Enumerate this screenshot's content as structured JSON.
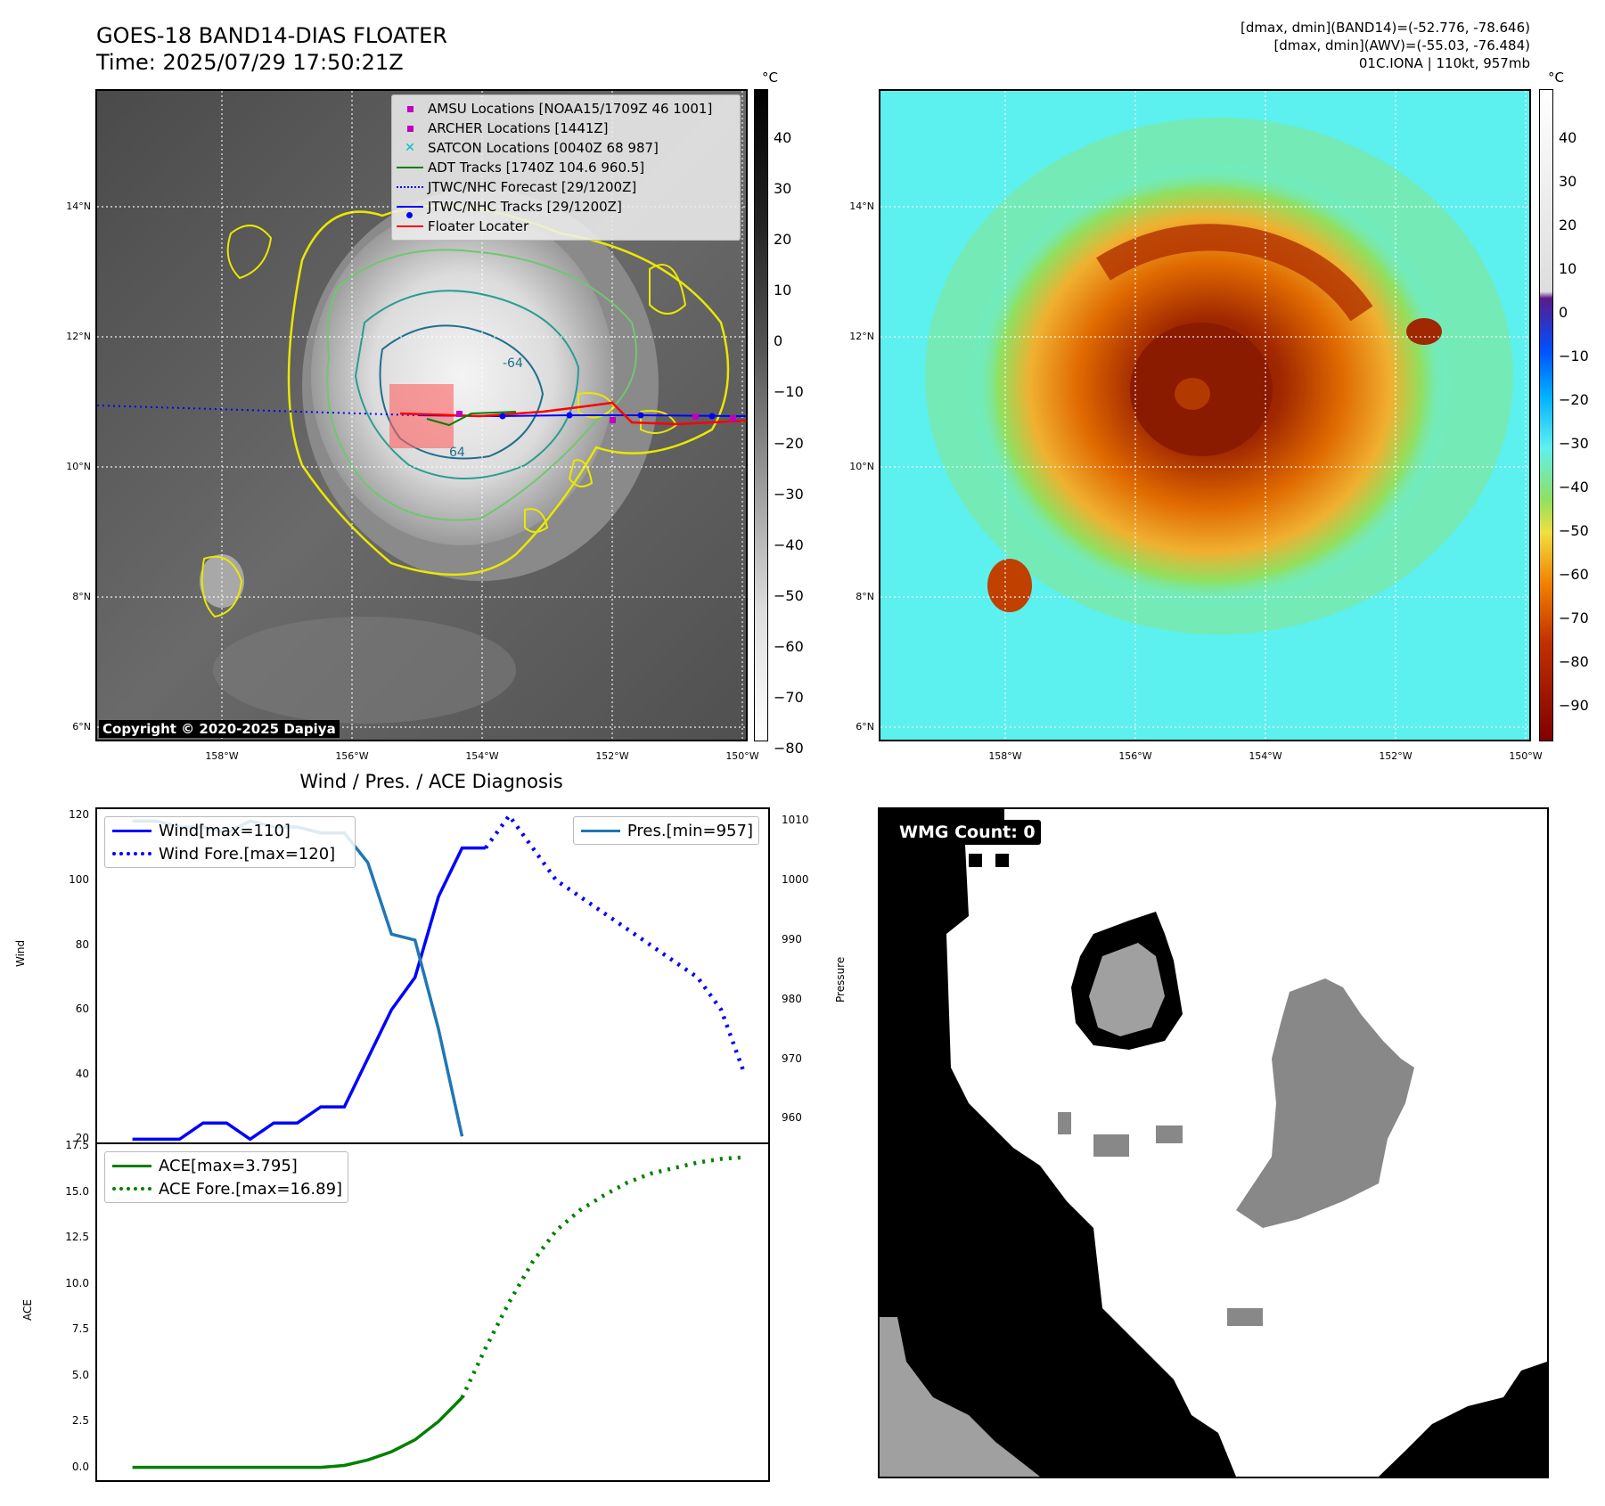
{
  "header": {
    "title_line1": "GOES-18 BAND14-DIAS FLOATER",
    "title_line2": "Time: 2025/07/29 17:50:21Z",
    "meta_line1": "[dmax, dmin](BAND14)=(-52.776, -78.646)",
    "meta_line2": "[dmax, dmin](AWV)=(-55.03, -76.484)",
    "meta_line3": "01C.IONA | 110kt, 957mb"
  },
  "map": {
    "lat_labels": [
      "14°N",
      "12°N",
      "10°N",
      "8°N",
      "6°N"
    ],
    "lon_labels": [
      "158°W",
      "156°W",
      "154°W",
      "152°W",
      "150°W"
    ],
    "copyright": "Copyright © 2020-2025 Dapiya",
    "contour_labels": [
      "-64",
      "64"
    ],
    "legend": [
      {
        "label": "AMSU Locations [NOAA15/1709Z 46 1001]",
        "color": "#c000c0",
        "symbol": "square"
      },
      {
        "label": "ARCHER Locations [1441Z]",
        "color": "#c000c0",
        "symbol": "square"
      },
      {
        "label": "SATCON Locations [0040Z 68 987]",
        "color": "#00c0c0",
        "symbol": "x"
      },
      {
        "label": "ADT Tracks [1740Z 104.6 960.5]",
        "color": "#008000",
        "symbol": "line"
      },
      {
        "label": "JTWC/NHC Forecast [29/1200Z]",
        "color": "#0000ff",
        "symbol": "dotted"
      },
      {
        "label": "JTWC/NHC Tracks [29/1200Z]",
        "color": "#0000ff",
        "symbol": "line-dot"
      },
      {
        "label": "Floater Locater",
        "color": "#ff0000",
        "symbol": "line"
      }
    ],
    "colorbar_gray": {
      "unit": "°C",
      "ticks": [
        "40",
        "30",
        "20",
        "10",
        "0",
        "−10",
        "−20",
        "−30",
        "−40",
        "−50",
        "−60",
        "−70",
        "−80"
      ]
    },
    "colorbar_color": {
      "unit": "°C",
      "ticks": [
        "40",
        "30",
        "20",
        "10",
        "0",
        "−10",
        "−20",
        "−30",
        "−40",
        "−50",
        "−60",
        "−70",
        "−80",
        "−90"
      ]
    }
  },
  "diagnosis": {
    "title": "Wind / Pres. / ACE Diagnosis",
    "wmg_count": "WMG Count: 0",
    "wind_ylabel": "Wind",
    "pres_ylabel": "Pressure",
    "ace_ylabel": "ACE"
  },
  "chart_data": [
    {
      "type": "line",
      "title": "Wind / Pres. / ACE Diagnosis",
      "ylabel": "Wind",
      "ylim": [
        19,
        122
      ],
      "y_ticks": [
        20,
        40,
        60,
        80,
        100,
        120
      ],
      "xlim": [
        0,
        27
      ],
      "series": [
        {
          "name": "Wind[max=110]",
          "color": "#0000ff",
          "style": "solid",
          "x": [
            1,
            2,
            3,
            4,
            5,
            6,
            7,
            8,
            9,
            10,
            11,
            12,
            13,
            14,
            15,
            16
          ],
          "values": [
            20,
            20,
            20,
            25,
            25,
            20,
            25,
            25,
            30,
            30,
            45,
            60,
            70,
            95,
            110,
            110
          ]
        },
        {
          "name": "Wind Fore.[max=120]",
          "color": "#0000ff",
          "style": "dotted",
          "x": [
            16,
            17,
            18,
            19,
            20,
            21,
            22,
            23,
            24,
            25,
            26,
            27
          ],
          "values": [
            110,
            120,
            110,
            100,
            95,
            90,
            85,
            80,
            75,
            70,
            60,
            40
          ]
        }
      ]
    },
    {
      "type": "line",
      "ylabel": "Pressure",
      "ylim": [
        956,
        1012
      ],
      "y_ticks": [
        960,
        970,
        980,
        990,
        1000,
        1010
      ],
      "series": [
        {
          "name": "Pres.[min=957]",
          "color": "#1f77b4",
          "style": "solid",
          "x": [
            1,
            2,
            3,
            4,
            5,
            6,
            7,
            8,
            9,
            10,
            11,
            12,
            13,
            14,
            15
          ],
          "values": [
            1010,
            1010,
            1009,
            1009,
            1008,
            1010,
            1009,
            1009,
            1008,
            1008,
            1003,
            991,
            990,
            975,
            957
          ]
        }
      ]
    },
    {
      "type": "line",
      "ylabel": "ACE",
      "ylim": [
        -0.7,
        17.6
      ],
      "y_ticks": [
        0.0,
        2.5,
        5.0,
        7.5,
        10.0,
        12.5,
        15.0,
        17.5
      ],
      "series": [
        {
          "name": "ACE[max=3.795]",
          "color": "#008000",
          "style": "solid",
          "x": [
            1,
            2,
            3,
            4,
            5,
            6,
            7,
            8,
            9,
            10,
            11,
            12,
            13,
            14,
            15
          ],
          "values": [
            0,
            0,
            0,
            0,
            0,
            0,
            0,
            0,
            0,
            0.1,
            0.4,
            0.85,
            1.5,
            2.5,
            3.795
          ]
        },
        {
          "name": "ACE Fore.[max=16.89]",
          "color": "#008000",
          "style": "dotted",
          "x": [
            15,
            16,
            17,
            18,
            19,
            20,
            21,
            22,
            23,
            24,
            25,
            26,
            27
          ],
          "values": [
            3.795,
            6.5,
            9.0,
            11.2,
            12.9,
            14.0,
            14.8,
            15.5,
            16.0,
            16.3,
            16.6,
            16.8,
            16.89
          ]
        }
      ]
    }
  ]
}
